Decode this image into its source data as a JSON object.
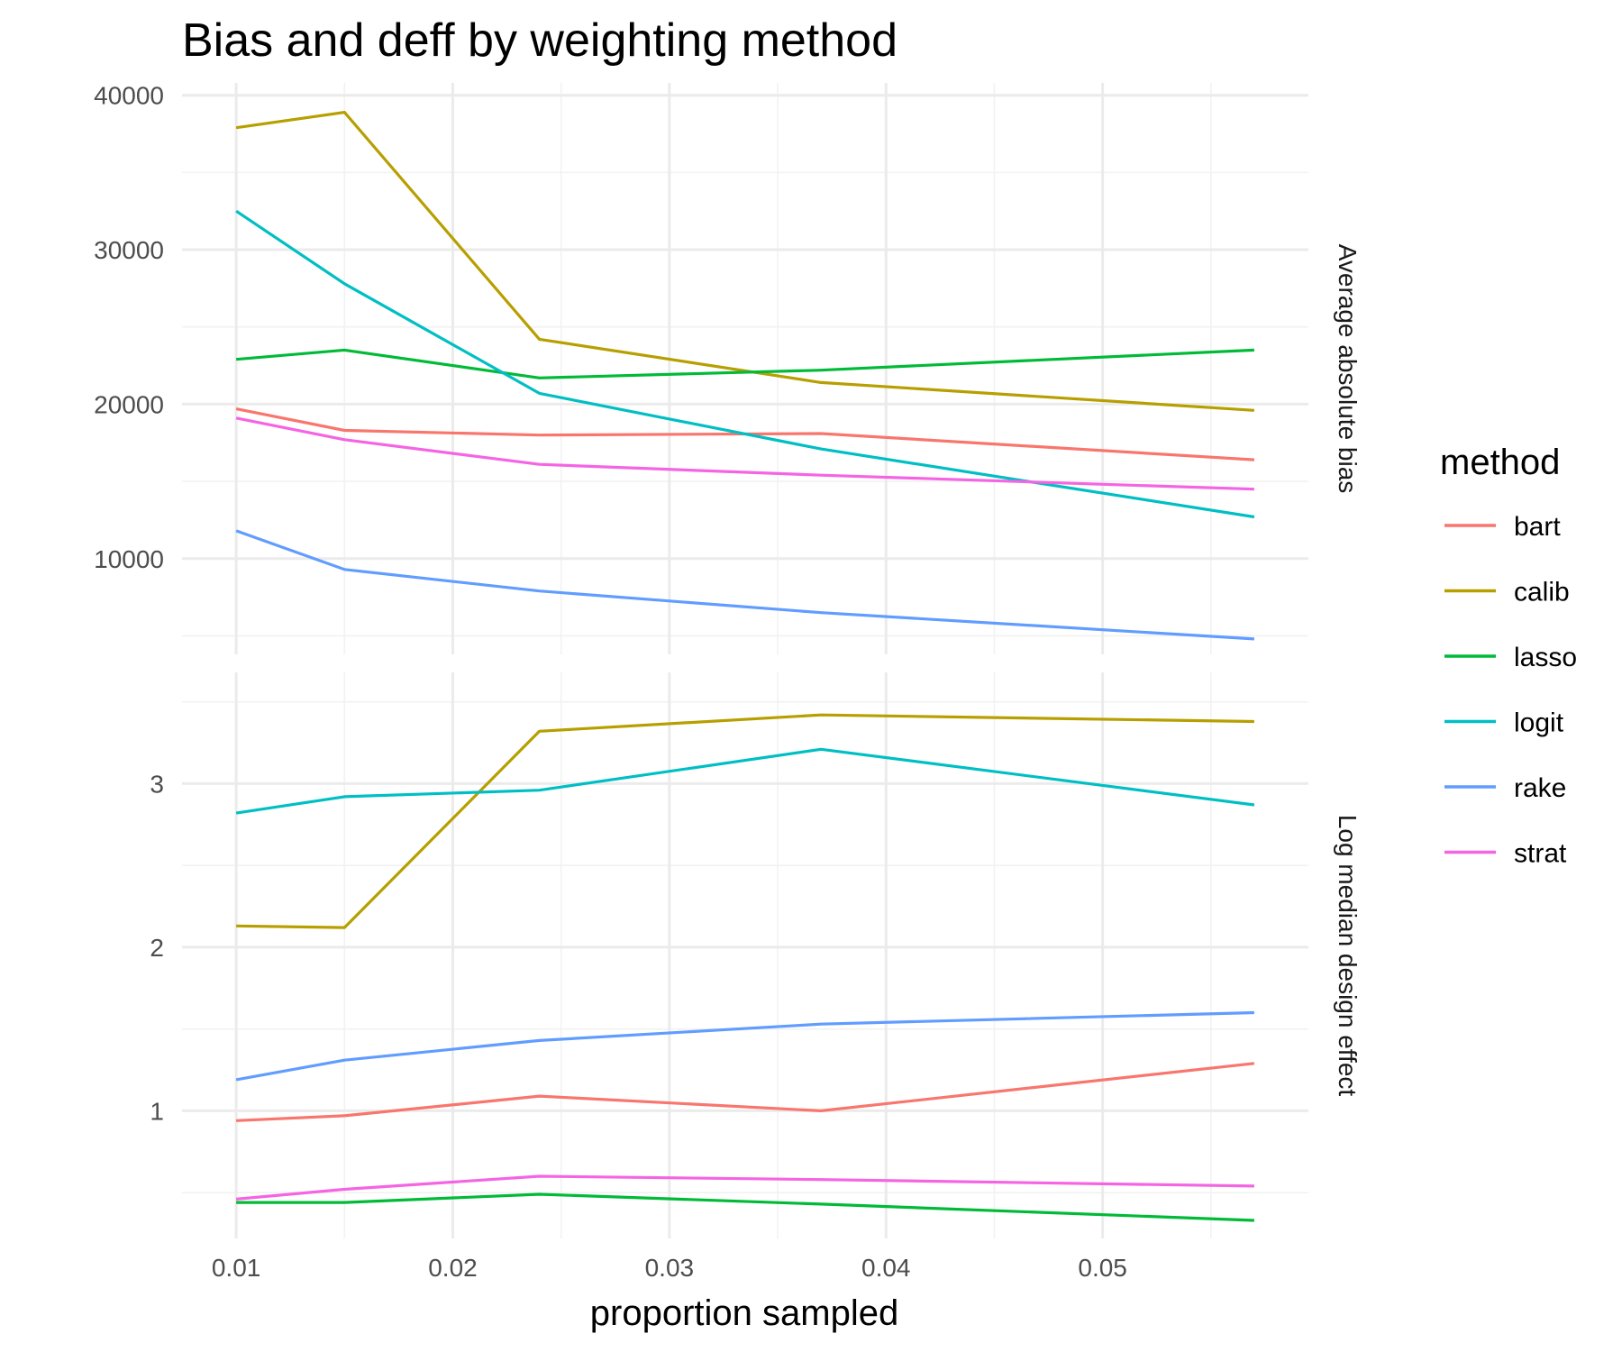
{
  "chart_data": {
    "type": "line",
    "title": "Bias and deff by weighting method",
    "xlabel": "proportion sampled",
    "x": [
      0.01,
      0.015,
      0.024,
      0.037,
      0.057
    ],
    "x_ticks": [
      "0.01",
      "0.02",
      "0.03",
      "0.04",
      "0.05"
    ],
    "xlim": [
      0.0075,
      0.0595
    ],
    "legend": {
      "title": "method",
      "position": "right"
    },
    "grid": true,
    "panels": [
      {
        "strip_label": "Average absolute bias",
        "ylim": [
          3800,
          40800
        ],
        "y_ticks": [
          "10000",
          "20000",
          "30000",
          "40000"
        ],
        "series": [
          {
            "name": "bart",
            "color": "#F8766D",
            "values": [
              19700,
              18300,
              18000,
              18100,
              16400
            ]
          },
          {
            "name": "calib",
            "color": "#B79F00",
            "values": [
              37900,
              38900,
              24200,
              21400,
              19600
            ]
          },
          {
            "name": "lasso",
            "color": "#00BA38",
            "values": [
              22900,
              23500,
              21700,
              22200,
              23500
            ]
          },
          {
            "name": "logit",
            "color": "#00BFC4",
            "values": [
              32500,
              27800,
              20700,
              17100,
              12700
            ]
          },
          {
            "name": "rake",
            "color": "#619CFF",
            "values": [
              11800,
              9300,
              7900,
              6500,
              4800
            ]
          },
          {
            "name": "strat",
            "color": "#F564E3",
            "values": [
              19100,
              17700,
              16100,
              15400,
              14500
            ]
          }
        ]
      },
      {
        "strip_label": "Log median design effect",
        "ylim": [
          0.22,
          3.68
        ],
        "y_ticks": [
          "1",
          "2",
          "3"
        ],
        "series": [
          {
            "name": "bart",
            "color": "#F8766D",
            "values": [
              0.94,
              0.97,
              1.09,
              1.0,
              1.29
            ]
          },
          {
            "name": "calib",
            "color": "#B79F00",
            "values": [
              2.13,
              2.12,
              3.32,
              3.42,
              3.38
            ]
          },
          {
            "name": "lasso",
            "color": "#00BA38",
            "values": [
              0.44,
              0.44,
              0.49,
              0.43,
              0.33
            ]
          },
          {
            "name": "logit",
            "color": "#00BFC4",
            "values": [
              2.82,
              2.92,
              2.96,
              3.21,
              2.87
            ]
          },
          {
            "name": "rake",
            "color": "#619CFF",
            "values": [
              1.19,
              1.31,
              1.43,
              1.53,
              1.6
            ]
          },
          {
            "name": "strat",
            "color": "#F564E3",
            "values": [
              0.46,
              0.52,
              0.6,
              0.58,
              0.54
            ]
          }
        ]
      }
    ]
  }
}
